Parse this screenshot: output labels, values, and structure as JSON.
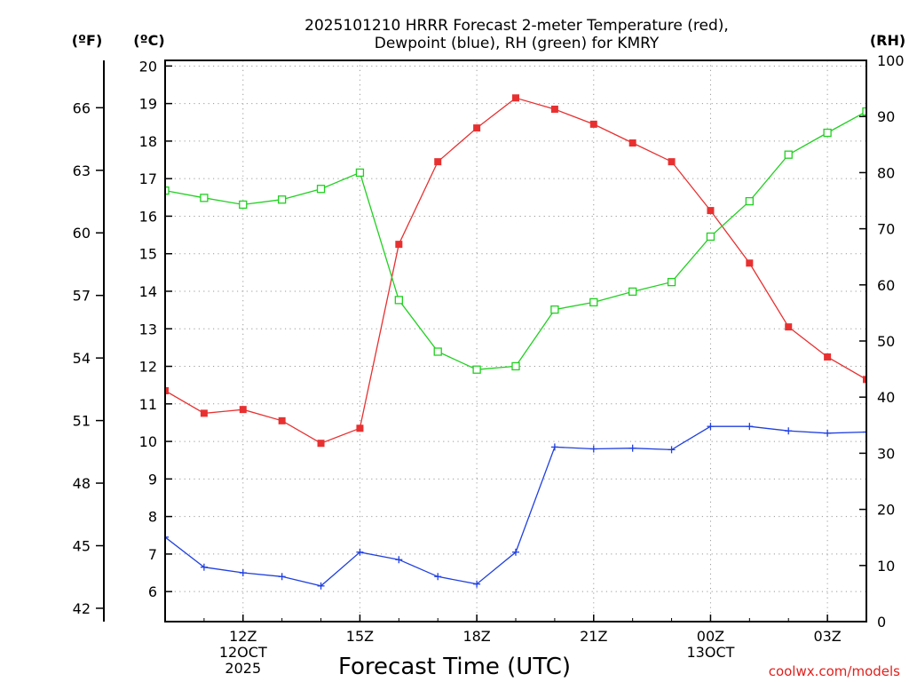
{
  "chart_data": {
    "type": "line",
    "title_lines": [
      "2025101210 HRRR Forecast 2-meter Temperature (red),",
      "Dewpoint (blue), RH (green) for KMRY"
    ],
    "xlabel": "Forecast Time (UTC)",
    "credit": "coolwx.com/models",
    "units": {
      "fahrenheit": "(ºF)",
      "celsius": "(ºC)",
      "rh": "(RH)"
    },
    "x_range_hours": [
      10,
      28
    ],
    "x_ticks": [
      {
        "hour": 12,
        "lines": [
          "12Z",
          "12OCT",
          "2025"
        ]
      },
      {
        "hour": 15,
        "lines": [
          "15Z"
        ]
      },
      {
        "hour": 18,
        "lines": [
          "18Z"
        ]
      },
      {
        "hour": 21,
        "lines": [
          "21Z"
        ]
      },
      {
        "hour": 24,
        "lines": [
          "00Z",
          "13OCT"
        ]
      },
      {
        "hour": 27,
        "lines": [
          "03Z"
        ]
      }
    ],
    "y_celsius_range": [
      5.2,
      20.15
    ],
    "y_celsius_ticks": [
      6,
      7,
      8,
      9,
      10,
      11,
      12,
      13,
      14,
      15,
      16,
      17,
      18,
      19,
      20
    ],
    "y_fahrenheit_ticks": [
      42,
      45,
      48,
      51,
      54,
      57,
      60,
      63,
      66
    ],
    "y_rh_range": [
      0,
      100
    ],
    "y_rh_ticks": [
      0,
      10,
      20,
      30,
      40,
      50,
      60,
      70,
      80,
      90,
      100
    ],
    "series": [
      {
        "name": "2-meter Temperature",
        "axis": "celsius",
        "color": "#e83030",
        "marker": "filled-square",
        "x": [
          10,
          11,
          12,
          13,
          14,
          15,
          16,
          17,
          18,
          19,
          20,
          21,
          22,
          23,
          24,
          25,
          26,
          27,
          28
        ],
        "values": [
          11.35,
          10.75,
          10.85,
          10.55,
          9.95,
          10.35,
          15.25,
          17.45,
          18.35,
          19.15,
          18.85,
          18.45,
          17.95,
          17.45,
          16.15,
          14.75,
          13.05,
          12.25,
          11.65
        ]
      },
      {
        "name": "Dewpoint",
        "axis": "celsius",
        "color": "#2040e0",
        "marker": "plus",
        "x": [
          10,
          11,
          12,
          13,
          14,
          15,
          16,
          17,
          18,
          19,
          20,
          21,
          22,
          23,
          24,
          25,
          26,
          27,
          28
        ],
        "values": [
          7.45,
          6.65,
          6.5,
          6.4,
          6.15,
          7.05,
          6.85,
          6.4,
          6.2,
          7.05,
          9.85,
          9.8,
          9.82,
          9.78,
          10.4,
          10.4,
          10.28,
          10.22,
          10.25
        ]
      },
      {
        "name": "RH",
        "axis": "rh",
        "color": "#20d020",
        "marker": "open-square",
        "x": [
          10,
          11,
          12,
          13,
          14,
          15,
          16,
          17,
          18,
          19,
          20,
          21,
          22,
          23,
          24,
          25,
          26,
          27,
          28
        ],
        "values": [
          76.8,
          75.5,
          74.3,
          75.2,
          77.1,
          80.0,
          57.3,
          48.1,
          44.9,
          45.5,
          55.6,
          56.9,
          58.8,
          60.5,
          68.6,
          74.9,
          83.2,
          87.1,
          90.9
        ]
      }
    ]
  }
}
